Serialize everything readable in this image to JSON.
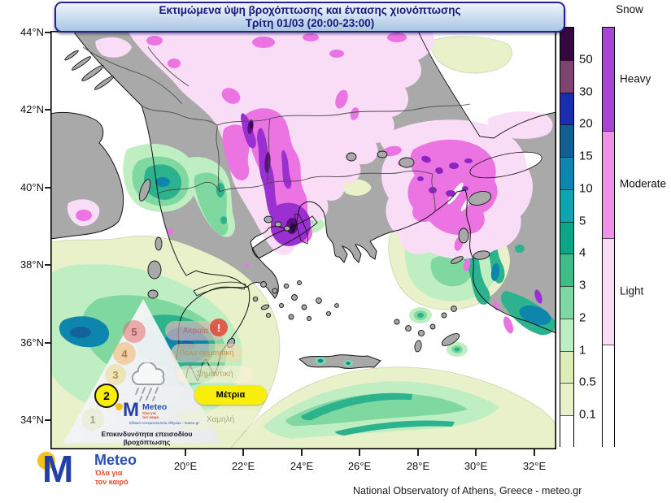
{
  "title": {
    "line1": "Εκτιμώμενα ύψη βροχόπτωσης και έντασης χιονόπτωσης",
    "line2": "Τρίτη 01/03 (20:00-23:00)"
  },
  "axes": {
    "lat": [
      "44°N",
      "42°N",
      "40°N",
      "38°N",
      "36°N",
      "34°N"
    ],
    "lon": [
      "20°E",
      "22°E",
      "24°E",
      "26°E",
      "28°E",
      "30°E",
      "32°E"
    ]
  },
  "rain_scale": {
    "labels": [
      "50",
      "30",
      "20",
      "15",
      "10",
      "5",
      "4",
      "3",
      "2",
      "1",
      "0.5",
      "0.1"
    ],
    "colors": [
      "#35073f",
      "#7d4470",
      "#1a2cb0",
      "#115e92",
      "#0d85ae",
      "#10a3b2",
      "#0ba687",
      "#3fbc89",
      "#7fd8a0",
      "#bdedc0",
      "#dceeb6",
      "#e9f1cb",
      "#ffffff"
    ]
  },
  "snow_scale": {
    "title": "Snow",
    "segments": [
      {
        "label": "Heavy",
        "color": "#a845d6"
      },
      {
        "label": "Moderate",
        "color": "#f090e9"
      },
      {
        "label": "Light",
        "color": "#f9dcf6"
      },
      {
        "label": "",
        "color": "#ffffff"
      }
    ]
  },
  "hazard_scale": {
    "caption": "Επικινδυνότητα επεισοδίου βροχόπτωσης",
    "active_level": "2",
    "warning_mark": "!",
    "levels": [
      {
        "num": "5",
        "label": "Ακραία"
      },
      {
        "num": "4",
        "label": "Πολύ σημαντική"
      },
      {
        "num": "3",
        "label": "Σημαντική"
      },
      {
        "num": "2",
        "label": "Μέτρια"
      },
      {
        "num": "1",
        "label": "Χαμηλή"
      }
    ],
    "logo": {
      "name": "Meteo",
      "tagline_line1": "Όλα για",
      "tagline_line2": "τον καιρό",
      "org": "Εθνικό Αστεροσκοπείο Αθηνών - meteo.gr"
    }
  },
  "brand": {
    "name": "Meteo",
    "m_glyph": "M",
    "tagline_line1": "Όλα για",
    "tagline_line2": "τον καιρό"
  },
  "attribution": "National Observatory of Athens, Greece - meteo.gr",
  "colors": {
    "land": "#a9a9a9",
    "sea": "#ffffff",
    "coastline": "#141414",
    "border": "#4a4a4a",
    "title_text": "#18187d",
    "title_border": "#23238f",
    "brand_blue": "#2440a8",
    "brand_red": "#e8452c",
    "brand_yellow": "#f5c21b",
    "active_yellow": "#f8ee0a",
    "map_snow_magenta": "#ec74e2",
    "map_snow_purple": "#9a30d2"
  }
}
